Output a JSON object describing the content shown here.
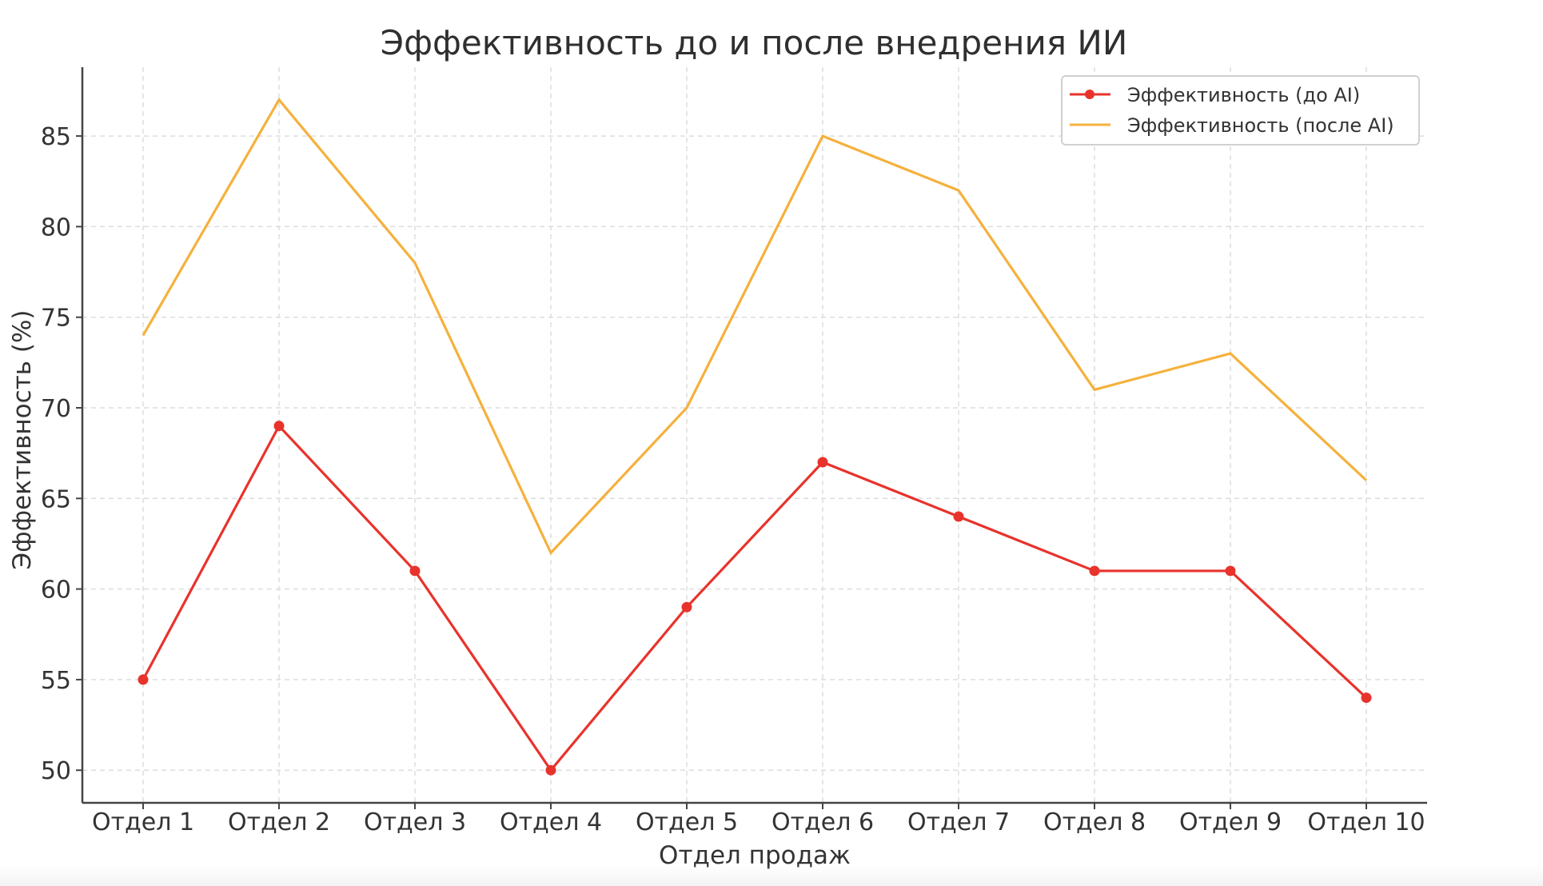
{
  "chart_data": {
    "type": "line",
    "title": "Эффективность до и после внедрения ИИ",
    "xlabel": "Отдел продаж",
    "ylabel": "Эффективность (%)",
    "categories": [
      "Отдел 1",
      "Отдел 2",
      "Отдел 3",
      "Отдел 4",
      "Отдел 5",
      "Отдел 6",
      "Отдел 7",
      "Отдел 8",
      "Отдел 9",
      "Отдел 10"
    ],
    "y_ticks": [
      50,
      55,
      60,
      65,
      70,
      75,
      80,
      85
    ],
    "ylim": [
      48.2,
      88.8
    ],
    "grid": true,
    "legend_position": "top-right",
    "series": [
      {
        "name": "Эффективность (до AI)",
        "values": [
          55,
          69,
          61,
          50,
          59,
          67,
          64,
          61,
          61,
          54
        ],
        "color": "#e8332c",
        "markers": true
      },
      {
        "name": "Эффективность (после AI)",
        "values": [
          74,
          87,
          78,
          62,
          70,
          85,
          82,
          71,
          73,
          66
        ],
        "color": "#f5b13d",
        "markers": false
      }
    ]
  }
}
